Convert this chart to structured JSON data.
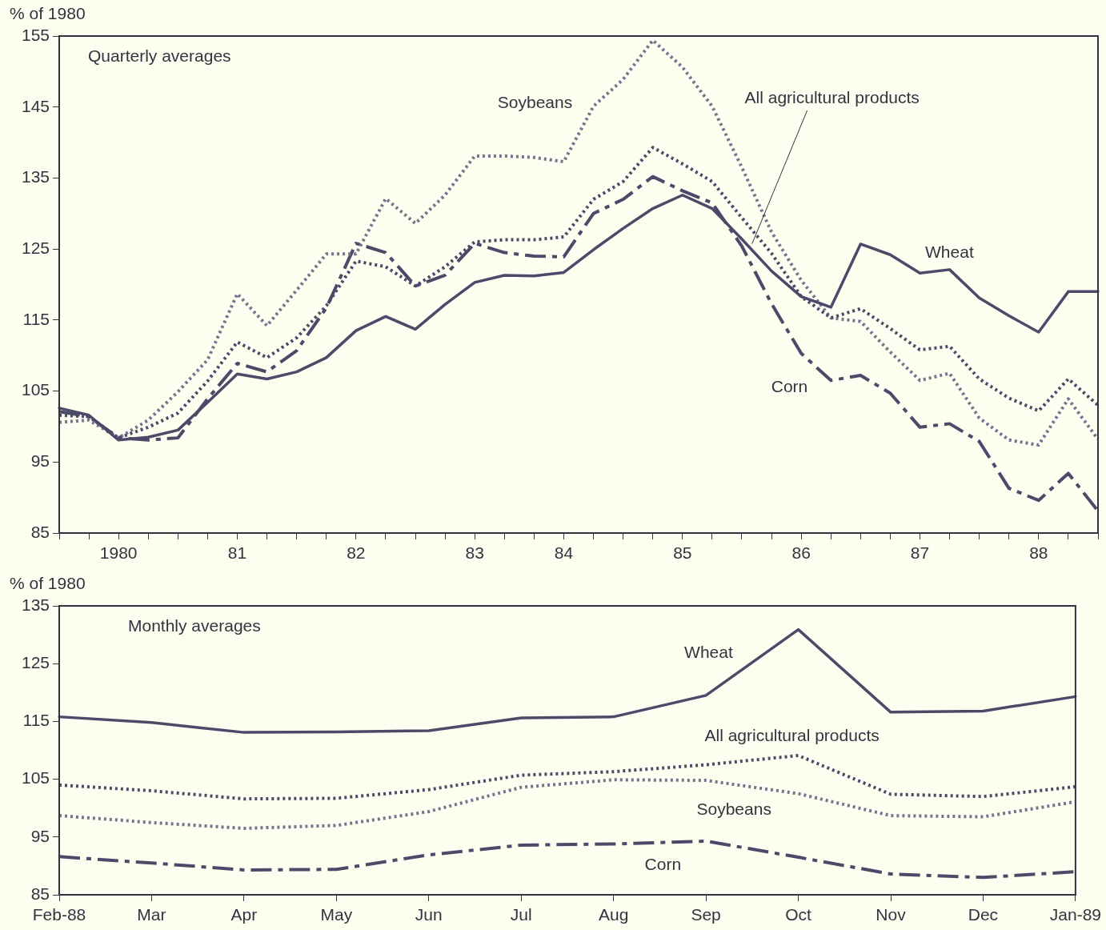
{
  "chart_data": [
    {
      "type": "line",
      "subtitle": "Quarterly averages",
      "ylabel": "% of 1980",
      "legend": false,
      "marker": "none",
      "categories": [
        null,
        null,
        "1980",
        null,
        null,
        null,
        "81",
        null,
        null,
        null,
        "82",
        null,
        null,
        null,
        "83",
        null,
        null,
        "84",
        null,
        null,
        null,
        "85",
        null,
        null,
        null,
        "86",
        null,
        null,
        null,
        "87",
        null,
        null,
        null,
        "88",
        null,
        null
      ],
      "ylim": [
        85,
        155
      ],
      "yticks": [
        85,
        95,
        105,
        115,
        125,
        135,
        145,
        155
      ],
      "series": [
        {
          "name": "Wheat",
          "color": "#4b4a68",
          "line_style": "solid",
          "values": [
            102.6,
            101.6,
            98.1,
            98.5,
            99.5,
            103.4,
            107.4,
            106.7,
            107.7,
            109.7,
            113.5,
            115.5,
            113.7,
            117.2,
            120.3,
            121.3,
            121.2,
            121.7,
            124.9,
            127.9,
            130.7,
            132.6,
            130.7,
            126.4,
            121.9,
            118.3,
            116.8,
            125.7,
            124.2,
            121.6,
            122.1,
            118.1,
            115.6,
            113.3,
            119.0,
            119.0
          ]
        },
        {
          "name": "All agricultural products",
          "color": "#4b4a68",
          "line_style": "dotted",
          "values": [
            101.6,
            101.4,
            98.4,
            99.9,
            101.9,
            106.4,
            111.9,
            109.7,
            112.5,
            117.0,
            123.3,
            122.5,
            119.8,
            122.5,
            126.0,
            126.3,
            126.3,
            126.7,
            132.0,
            134.5,
            139.3,
            137.0,
            134.5,
            129.4,
            124.4,
            118.3,
            115.3,
            116.6,
            113.8,
            110.8,
            111.3,
            106.7,
            104.0,
            102.2,
            106.7,
            103.0
          ]
        },
        {
          "name": "Soybeans",
          "color": "#74748e",
          "line_style": "dotted",
          "values": [
            100.6,
            100.9,
            98.4,
            100.9,
            104.9,
            109.4,
            118.7,
            114.2,
            119.2,
            124.3,
            124.3,
            132.1,
            128.6,
            132.6,
            138.1,
            138.1,
            137.9,
            137.3,
            145.1,
            148.9,
            154.4,
            150.6,
            145.1,
            136.5,
            127.4,
            120.6,
            115.3,
            114.8,
            110.5,
            106.5,
            107.5,
            101.2,
            98.1,
            97.4,
            103.9,
            98.2
          ]
        },
        {
          "name": "Corn",
          "color": "#4b4a68",
          "line_style": "dashed",
          "values": [
            102.1,
            101.4,
            98.4,
            98.1,
            98.4,
            103.9,
            108.9,
            107.7,
            110.7,
            116.7,
            125.8,
            124.5,
            119.8,
            121.3,
            125.8,
            124.5,
            124.0,
            123.9,
            130.0,
            132.0,
            135.2,
            133.2,
            131.5,
            125.4,
            117.3,
            110.3,
            106.5,
            107.2,
            104.7,
            99.9,
            100.4,
            97.9,
            91.3,
            89.6,
            93.4,
            88.1
          ]
        }
      ]
    },
    {
      "type": "line",
      "subtitle": "Monthly averages",
      "ylabel": "% of 1980",
      "legend": false,
      "marker": "none",
      "categories": [
        "Feb-88",
        "Mar",
        "Apr",
        "May",
        "Jun",
        "Jul",
        "Aug",
        "Sep",
        "Oct",
        "Nov",
        "Dec",
        "Jan-89"
      ],
      "ylim": [
        85,
        135
      ],
      "yticks": [
        85,
        95,
        105,
        115,
        125,
        135
      ],
      "series": [
        {
          "name": "Wheat",
          "color": "#4b4a68",
          "line_style": "solid",
          "values": [
            115.8,
            114.8,
            113.1,
            113.2,
            113.4,
            115.6,
            115.8,
            119.5,
            130.9,
            116.6,
            116.8,
            119.3
          ]
        },
        {
          "name": "All agricultural products",
          "color": "#4b4a68",
          "line_style": "dotted",
          "values": [
            104.0,
            103.0,
            101.6,
            101.7,
            103.2,
            105.7,
            106.3,
            107.5,
            109.1,
            102.4,
            102.0,
            103.7
          ]
        },
        {
          "name": "Soybeans",
          "color": "#74748e",
          "line_style": "dotted",
          "values": [
            98.7,
            97.5,
            96.5,
            97.0,
            99.4,
            103.6,
            104.9,
            104.8,
            102.5,
            98.7,
            98.5,
            101.1
          ]
        },
        {
          "name": "Corn",
          "color": "#4b4a68",
          "line_style": "dashed",
          "values": [
            91.6,
            90.5,
            89.3,
            89.4,
            91.9,
            93.6,
            93.8,
            94.3,
            91.5,
            88.6,
            88.0,
            89.0
          ]
        }
      ]
    }
  ]
}
